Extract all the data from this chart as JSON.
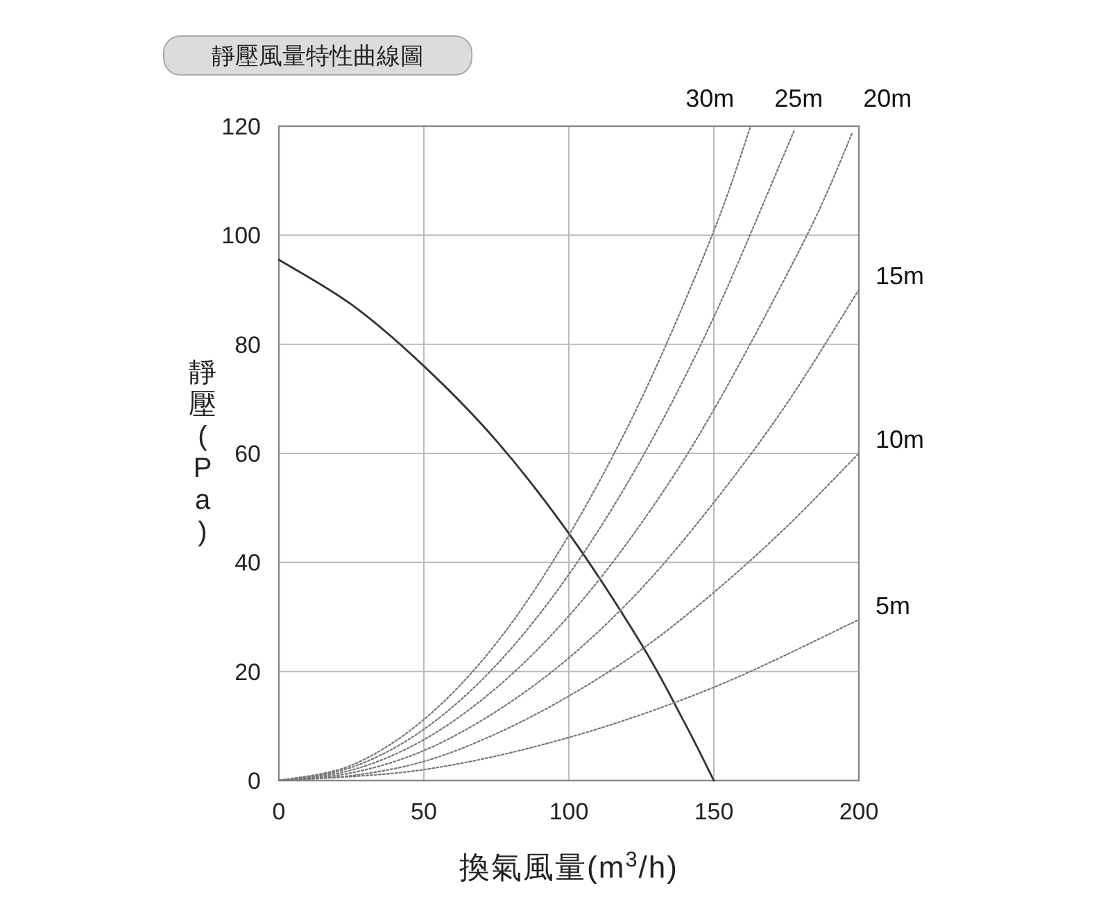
{
  "chart_data": {
    "type": "line",
    "title": "靜壓風量特性曲線圖",
    "xlabel": "換氣風量(m$^{3}$/h)",
    "ylabel": "靜壓(Pa)",
    "xlim": [
      0,
      200
    ],
    "ylim": [
      0,
      120
    ],
    "xticks": [
      0,
      50,
      100,
      150,
      200
    ],
    "yticks": [
      0,
      20,
      40,
      60,
      80,
      100,
      120
    ],
    "grid": true,
    "series": [
      {
        "color": "#333333",
        "line_style": "solid",
        "x": [
          0,
          25,
          50,
          75,
          100,
          125,
          140,
          150
        ],
        "values": [
          95.5,
          87.3,
          76,
          62.3,
          45.3,
          25,
          10.5,
          0
        ]
      },
      {
        "name": "30m",
        "color": "#777777",
        "line_style": "dotted",
        "x": [
          0,
          25,
          50,
          75,
          100,
          125,
          149.4,
          162.5
        ],
        "values": [
          0,
          2.8,
          11.2,
          25.2,
          45,
          70,
          100,
          119.7
        ]
      },
      {
        "name": "25m",
        "color": "#777777",
        "line_style": "dotted",
        "x": [
          0,
          25,
          50,
          75,
          100,
          125,
          150,
          177.7
        ],
        "values": [
          0,
          2.4,
          9.4,
          21.2,
          37.8,
          59,
          85,
          119.2
        ]
      },
      {
        "name": "20m",
        "color": "#777777",
        "line_style": "dotted",
        "x": [
          0,
          25,
          50,
          75,
          100,
          125,
          150,
          182.1,
          197.6
        ],
        "values": [
          0,
          1.9,
          7.5,
          17,
          30.2,
          47.2,
          68,
          100,
          118.6
        ]
      },
      {
        "name": "15m",
        "color": "#777777",
        "line_style": "dotted",
        "x": [
          0,
          25,
          50,
          75,
          100,
          125,
          150,
          175,
          200
        ],
        "values": [
          0,
          1.4,
          5.5,
          12.7,
          22.5,
          35.2,
          51,
          69,
          90
        ]
      },
      {
        "name": "10m",
        "color": "#777777",
        "line_style": "dotted",
        "x": [
          0,
          25,
          50,
          75,
          100,
          125,
          150,
          175,
          200
        ],
        "values": [
          0,
          0.9,
          3.5,
          8.6,
          15.5,
          24,
          34.5,
          46.5,
          60
        ]
      },
      {
        "name": "5m",
        "color": "#777777",
        "line_style": "dotted",
        "x": [
          0,
          50,
          100,
          150,
          200
        ],
        "values": [
          0,
          2,
          7.9,
          17.1,
          29.5
        ]
      }
    ]
  }
}
